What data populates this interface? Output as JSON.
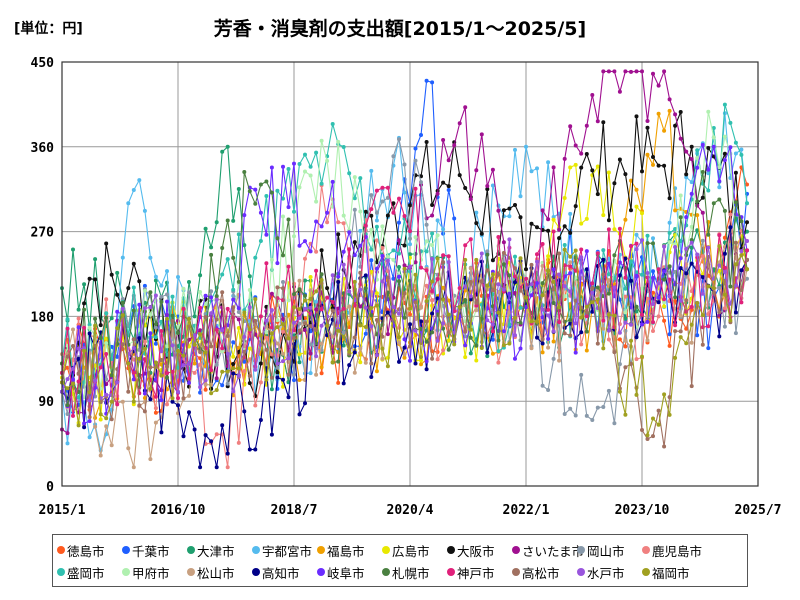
{
  "unit_label": "[単位：円]",
  "title": "芳香・消臭剤の支出額[2015/1～2025/5]",
  "chart_data": {
    "type": "line",
    "title": "芳香・消臭剤の支出額[2015/1～2025/5]",
    "unit": "[単位：円]",
    "xlabel": "",
    "ylabel": "",
    "ylim": [
      0,
      450
    ],
    "yticks": [
      0,
      90,
      180,
      270,
      360,
      450
    ],
    "xlim": [
      "2015-01",
      "2025-07"
    ],
    "xticks": [
      "2015/1",
      "2016/10",
      "2018/7",
      "2020/4",
      "2022/1",
      "2023/10",
      "2025/7"
    ],
    "grid": true,
    "legend_position": "bottom",
    "x_start": "2015-01",
    "x_end": "2025-05",
    "series": [
      {
        "name": "徳島市",
        "color": "#ff5a1f",
        "anchors": [
          [
            0,
            120
          ],
          [
            12,
            125
          ],
          [
            24,
            140
          ],
          [
            36,
            150
          ],
          [
            48,
            160
          ],
          [
            60,
            170
          ],
          [
            72,
            180
          ],
          [
            84,
            190
          ],
          [
            96,
            195
          ],
          [
            108,
            200
          ],
          [
            118,
            215
          ],
          [
            124,
            320
          ]
        ]
      },
      {
        "name": "千葉市",
        "color": "#1f5fff",
        "anchors": [
          [
            0,
            110
          ],
          [
            12,
            160
          ],
          [
            24,
            150
          ],
          [
            36,
            150
          ],
          [
            48,
            180
          ],
          [
            60,
            220
          ],
          [
            66,
            430
          ],
          [
            72,
            200
          ],
          [
            84,
            220
          ],
          [
            96,
            215
          ],
          [
            108,
            210
          ],
          [
            118,
            200
          ],
          [
            124,
            310
          ]
        ]
      },
      {
        "name": "大津市",
        "color": "#1f9f6f",
        "anchors": [
          [
            0,
            210
          ],
          [
            12,
            170
          ],
          [
            24,
            180
          ],
          [
            30,
            360
          ],
          [
            36,
            150
          ],
          [
            48,
            180
          ],
          [
            60,
            200
          ],
          [
            72,
            190
          ],
          [
            84,
            190
          ],
          [
            96,
            200
          ],
          [
            108,
            215
          ],
          [
            118,
            230
          ],
          [
            124,
            270
          ]
        ]
      },
      {
        "name": "宇都宮市",
        "color": "#55bbee",
        "anchors": [
          [
            0,
            100
          ],
          [
            8,
            55
          ],
          [
            12,
            300
          ],
          [
            24,
            160
          ],
          [
            36,
            150
          ],
          [
            48,
            180
          ],
          [
            60,
            340
          ],
          [
            72,
            200
          ],
          [
            84,
            360
          ],
          [
            96,
            190
          ],
          [
            108,
            230
          ],
          [
            118,
            370
          ],
          [
            124,
            300
          ]
        ]
      },
      {
        "name": "福島市",
        "color": "#f0a000",
        "anchors": [
          [
            0,
            110
          ],
          [
            12,
            140
          ],
          [
            24,
            130
          ],
          [
            36,
            140
          ],
          [
            48,
            160
          ],
          [
            60,
            170
          ],
          [
            72,
            180
          ],
          [
            84,
            185
          ],
          [
            96,
            190
          ],
          [
            108,
            395
          ],
          [
            118,
            210
          ],
          [
            124,
            240
          ]
        ]
      },
      {
        "name": "広島市",
        "color": "#e8e800",
        "anchors": [
          [
            0,
            115
          ],
          [
            12,
            130
          ],
          [
            24,
            160
          ],
          [
            36,
            150
          ],
          [
            48,
            180
          ],
          [
            60,
            190
          ],
          [
            72,
            180
          ],
          [
            84,
            200
          ],
          [
            96,
            330
          ],
          [
            108,
            210
          ],
          [
            118,
            220
          ],
          [
            124,
            230
          ]
        ]
      },
      {
        "name": "大阪市",
        "color": "#111111",
        "anchors": [
          [
            0,
            120
          ],
          [
            5,
            220
          ],
          [
            12,
            210
          ],
          [
            24,
            150
          ],
          [
            36,
            130
          ],
          [
            48,
            210
          ],
          [
            60,
            300
          ],
          [
            72,
            330
          ],
          [
            84,
            230
          ],
          [
            96,
            335
          ],
          [
            108,
            340
          ],
          [
            114,
            360
          ],
          [
            124,
            280
          ]
        ]
      },
      {
        "name": "さいたま市",
        "color": "#a01090",
        "anchors": [
          [
            0,
            60
          ],
          [
            12,
            150
          ],
          [
            24,
            160
          ],
          [
            36,
            150
          ],
          [
            48,
            180
          ],
          [
            60,
            200
          ],
          [
            72,
            385
          ],
          [
            84,
            210
          ],
          [
            96,
            415
          ],
          [
            108,
            425
          ],
          [
            118,
            210
          ],
          [
            124,
            250
          ]
        ]
      },
      {
        "name": "岡山市",
        "color": "#8899aa",
        "anchors": [
          [
            0,
            100
          ],
          [
            12,
            170
          ],
          [
            24,
            150
          ],
          [
            36,
            160
          ],
          [
            48,
            170
          ],
          [
            60,
            350
          ],
          [
            72,
            200
          ],
          [
            84,
            190
          ],
          [
            96,
            70
          ],
          [
            108,
            200
          ],
          [
            118,
            210
          ],
          [
            124,
            220
          ]
        ]
      },
      {
        "name": "鹿児島市",
        "color": "#f08080",
        "anchors": [
          [
            0,
            130
          ],
          [
            12,
            150
          ],
          [
            24,
            120
          ],
          [
            28,
            55
          ],
          [
            36,
            110
          ],
          [
            48,
            280
          ],
          [
            60,
            190
          ],
          [
            72,
            180
          ],
          [
            84,
            190
          ],
          [
            96,
            200
          ],
          [
            108,
            180
          ],
          [
            124,
            260
          ]
        ]
      },
      {
        "name": "盛岡市",
        "color": "#30c0b0",
        "anchors": [
          [
            0,
            130
          ],
          [
            12,
            160
          ],
          [
            24,
            170
          ],
          [
            36,
            260
          ],
          [
            48,
            350
          ],
          [
            60,
            250
          ],
          [
            72,
            200
          ],
          [
            84,
            190
          ],
          [
            96,
            210
          ],
          [
            108,
            220
          ],
          [
            118,
            380
          ],
          [
            124,
            300
          ]
        ]
      },
      {
        "name": "甲府市",
        "color": "#b0f0b0",
        "anchors": [
          [
            0,
            120
          ],
          [
            12,
            150
          ],
          [
            24,
            160
          ],
          [
            36,
            180
          ],
          [
            48,
            345
          ],
          [
            60,
            240
          ],
          [
            72,
            210
          ],
          [
            84,
            220
          ],
          [
            96,
            200
          ],
          [
            108,
            215
          ],
          [
            118,
            370
          ],
          [
            124,
            240
          ]
        ]
      },
      {
        "name": "松山市",
        "color": "#c8a080",
        "anchors": [
          [
            0,
            140
          ],
          [
            12,
            40
          ],
          [
            24,
            150
          ],
          [
            36,
            160
          ],
          [
            48,
            170
          ],
          [
            60,
            180
          ],
          [
            72,
            190
          ],
          [
            84,
            185
          ],
          [
            96,
            190
          ],
          [
            108,
            200
          ],
          [
            118,
            210
          ],
          [
            124,
            230
          ]
        ]
      },
      {
        "name": "高知市",
        "color": "#000088",
        "anchors": [
          [
            0,
            100
          ],
          [
            12,
            130
          ],
          [
            24,
            60
          ],
          [
            36,
            70
          ],
          [
            48,
            160
          ],
          [
            60,
            175
          ],
          [
            72,
            180
          ],
          [
            84,
            190
          ],
          [
            96,
            185
          ],
          [
            108,
            195
          ],
          [
            118,
            205
          ],
          [
            124,
            240
          ]
        ]
      },
      {
        "name": "岐阜市",
        "color": "#6a2cff",
        "anchors": [
          [
            0,
            110
          ],
          [
            12,
            140
          ],
          [
            24,
            150
          ],
          [
            36,
            290
          ],
          [
            48,
            290
          ],
          [
            60,
            170
          ],
          [
            72,
            180
          ],
          [
            84,
            190
          ],
          [
            96,
            195
          ],
          [
            108,
            200
          ],
          [
            118,
            360
          ],
          [
            124,
            250
          ]
        ]
      },
      {
        "name": "札幌市",
        "color": "#4a8040",
        "anchors": [
          [
            0,
            130
          ],
          [
            12,
            150
          ],
          [
            24,
            160
          ],
          [
            36,
            320
          ],
          [
            48,
            170
          ],
          [
            60,
            180
          ],
          [
            72,
            190
          ],
          [
            84,
            200
          ],
          [
            96,
            210
          ],
          [
            108,
            220
          ],
          [
            118,
            300
          ],
          [
            124,
            230
          ]
        ]
      },
      {
        "name": "神戸市",
        "color": "#e0207a",
        "anchors": [
          [
            0,
            120
          ],
          [
            12,
            130
          ],
          [
            24,
            150
          ],
          [
            36,
            180
          ],
          [
            48,
            200
          ],
          [
            60,
            290
          ],
          [
            72,
            210
          ],
          [
            84,
            220
          ],
          [
            96,
            215
          ],
          [
            108,
            230
          ],
          [
            118,
            210
          ],
          [
            124,
            250
          ]
        ]
      },
      {
        "name": "高松市",
        "color": "#a07060",
        "anchors": [
          [
            0,
            110
          ],
          [
            12,
            100
          ],
          [
            24,
            150
          ],
          [
            36,
            160
          ],
          [
            48,
            170
          ],
          [
            60,
            180
          ],
          [
            72,
            190
          ],
          [
            84,
            200
          ],
          [
            96,
            210
          ],
          [
            108,
            80
          ],
          [
            118,
            205
          ],
          [
            124,
            240
          ]
        ]
      },
      {
        "name": "水戸市",
        "color": "#9955dd",
        "anchors": [
          [
            0,
            100
          ],
          [
            12,
            140
          ],
          [
            24,
            160
          ],
          [
            36,
            150
          ],
          [
            48,
            180
          ],
          [
            60,
            190
          ],
          [
            72,
            200
          ],
          [
            84,
            210
          ],
          [
            96,
            205
          ],
          [
            108,
            215
          ],
          [
            118,
            220
          ],
          [
            124,
            260
          ]
        ]
      },
      {
        "name": "福岡市",
        "color": "#a0a020",
        "anchors": [
          [
            0,
            110
          ],
          [
            12,
            130
          ],
          [
            24,
            150
          ],
          [
            36,
            160
          ],
          [
            48,
            170
          ],
          [
            60,
            180
          ],
          [
            72,
            190
          ],
          [
            84,
            200
          ],
          [
            96,
            195
          ],
          [
            108,
            65
          ],
          [
            118,
            210
          ],
          [
            124,
            230
          ]
        ]
      }
    ]
  }
}
